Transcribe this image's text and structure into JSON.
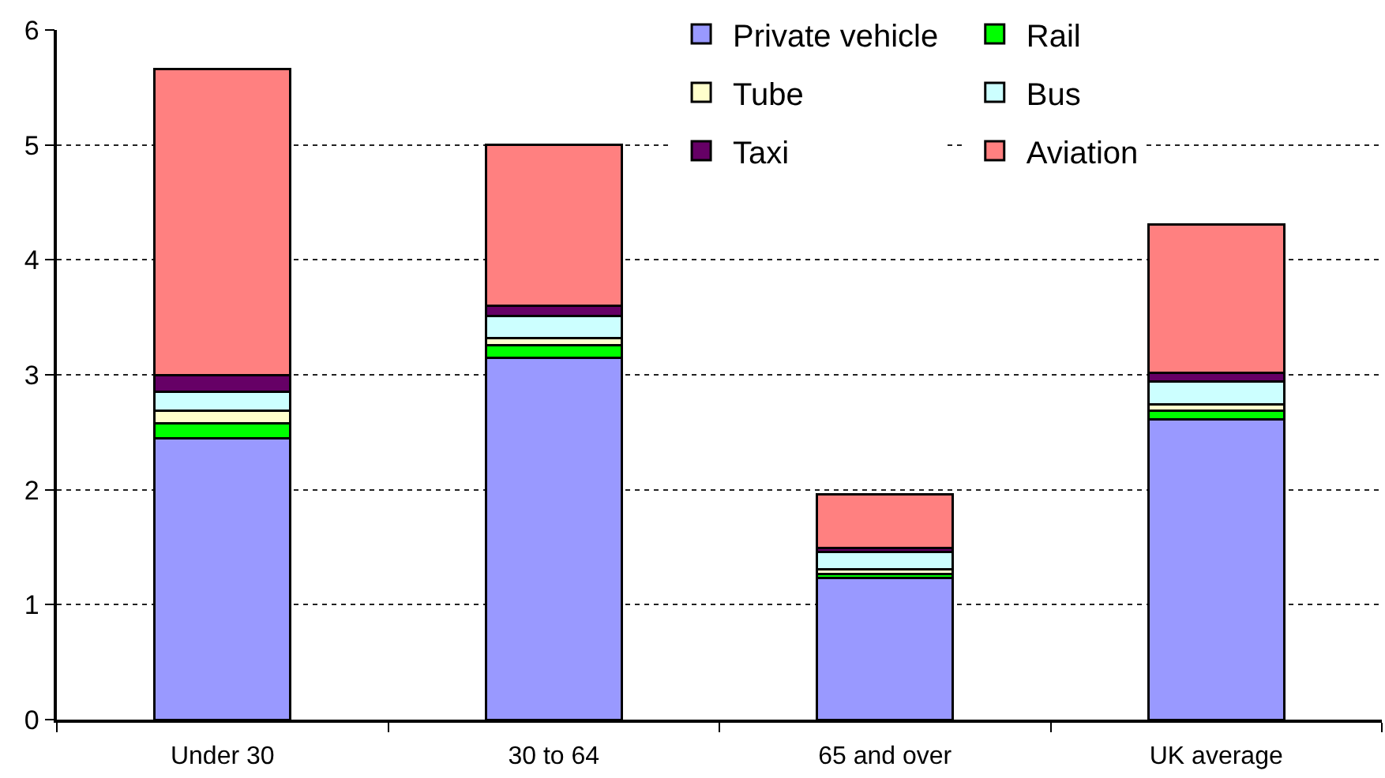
{
  "chart_data": {
    "type": "bar",
    "stacked": true,
    "categories": [
      "Under 30",
      "30 to 64",
      "65 and over",
      "UK average"
    ],
    "series": [
      {
        "name": "Private vehicle",
        "color": "#9999ff",
        "values": [
          2.45,
          3.15,
          1.23,
          2.61
        ]
      },
      {
        "name": "Rail",
        "color": "#00ff00",
        "values": [
          0.13,
          0.11,
          0.04,
          0.08
        ]
      },
      {
        "name": "Tube",
        "color": "#ffffcc",
        "values": [
          0.11,
          0.06,
          0.04,
          0.05
        ]
      },
      {
        "name": "Bus",
        "color": "#ccffff",
        "values": [
          0.16,
          0.19,
          0.15,
          0.2
        ]
      },
      {
        "name": "Taxi",
        "color": "#660066",
        "values": [
          0.15,
          0.09,
          0.03,
          0.08
        ]
      },
      {
        "name": "Aviation",
        "color": "#ff8080",
        "values": [
          2.66,
          1.4,
          0.47,
          1.29
        ]
      }
    ],
    "ylim": [
      0,
      6
    ],
    "yticks": [
      0,
      1,
      2,
      3,
      4,
      5,
      6
    ],
    "grid": "y",
    "legend": "top right"
  }
}
